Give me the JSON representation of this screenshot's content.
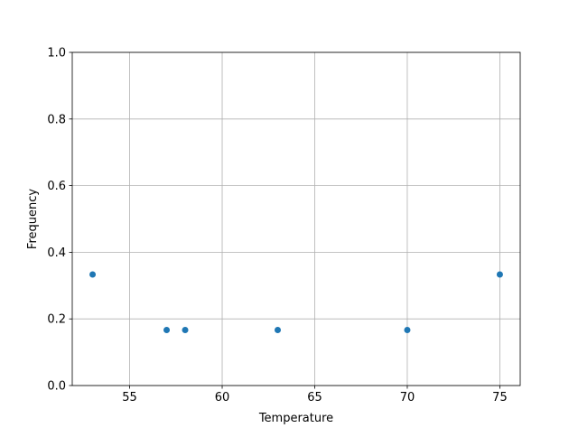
{
  "chart_data": {
    "type": "scatter",
    "title": "",
    "xlabel": "Temperature",
    "ylabel": "Frequency",
    "xlim": [
      51.9,
      76.1
    ],
    "ylim": [
      0,
      1
    ],
    "xticks": [
      55,
      60,
      65,
      70,
      75
    ],
    "yticks": [
      0.0,
      0.2,
      0.4,
      0.6,
      0.8,
      1.0
    ],
    "xtick_labels": [
      "55",
      "60",
      "65",
      "70",
      "75"
    ],
    "ytick_labels": [
      "0.0",
      "0.2",
      "0.4",
      "0.6",
      "0.8",
      "1.0"
    ],
    "grid": true,
    "color": "#1f77b4",
    "points": [
      {
        "x": 53,
        "y": 0.3333
      },
      {
        "x": 57,
        "y": 0.1667
      },
      {
        "x": 58,
        "y": 0.1667
      },
      {
        "x": 63,
        "y": 0.1667
      },
      {
        "x": 70,
        "y": 0.1667
      },
      {
        "x": 75,
        "y": 0.3333
      }
    ]
  }
}
